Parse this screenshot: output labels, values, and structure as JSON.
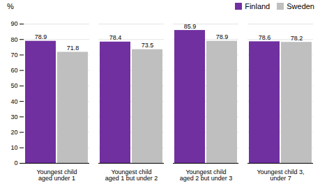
{
  "chart_data": {
    "type": "bar",
    "ylabel": "%",
    "categories": [
      "Youngest child\naged under 1",
      "Youngest child\naged 1 but under 2",
      "Youngest child\naged 2 but under 3",
      "Youngest child 3,\nunder 7"
    ],
    "series": [
      {
        "name": "Finland",
        "color": "#7030a0",
        "values": [
          78.9,
          78.4,
          85.9,
          78.6
        ]
      },
      {
        "name": "Sweden",
        "color": "#bfbfbf",
        "values": [
          71.8,
          73.5,
          78.9,
          78.2
        ]
      }
    ],
    "ylim": [
      0,
      90
    ],
    "yticks": [
      0,
      10,
      20,
      30,
      40,
      50,
      60,
      70,
      80,
      90
    ],
    "grid": true,
    "legend": "upper right",
    "data_labels": true
  }
}
